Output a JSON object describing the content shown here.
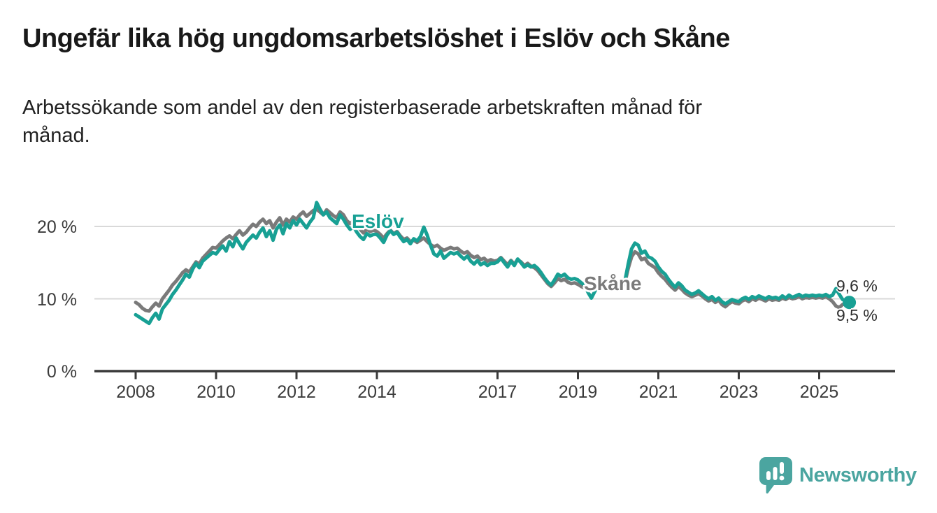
{
  "chart_data": {
    "type": "line",
    "title": "Ungefär lika hög ungdomsarbetslöshet i Eslöv och Skåne",
    "subtitle_lines": [
      "Arbetssökande som andel av den registerbaserade arbetskraften månad för",
      "månad."
    ],
    "x_start_year": 2008,
    "points_per_year": 12,
    "x_ticks": [
      2008,
      2010,
      2012,
      2014,
      2017,
      2019,
      2021,
      2023,
      2025
    ],
    "y_ticks": [
      {
        "value": 20,
        "label": "20 %"
      },
      {
        "value": 10,
        "label": "10 %"
      },
      {
        "value": 0,
        "label": "0 %"
      }
    ],
    "ylim": [
      0,
      25
    ],
    "grid": "horizontal-only",
    "legend": "inline-series-labels",
    "series": [
      {
        "name": "Skåne",
        "color": "#7A7A7A",
        "end_label": "9,6 %",
        "end_dot": false,
        "values": [
          9.5,
          9.2,
          8.7,
          8.4,
          8.3,
          8.9,
          9.4,
          9,
          10,
          10.6,
          11.2,
          11.9,
          12.4,
          13,
          13.6,
          14,
          13.7,
          14.4,
          15.1,
          14.8,
          15.6,
          16.1,
          16.6,
          17.1,
          17,
          17.5,
          18,
          18.4,
          18.7,
          18.3,
          18.9,
          19.4,
          18.8,
          19.2,
          19.8,
          20.3,
          20,
          20.6,
          21,
          20.4,
          20.8,
          19.8,
          20.6,
          21.2,
          20.2,
          21,
          20.6,
          21.3,
          21,
          21.6,
          22,
          21.4,
          21.8,
          22.2,
          22.4,
          22,
          21.6,
          22.3,
          21.9,
          21.5,
          21.2,
          22,
          21.6,
          20.8,
          20.4,
          20.8,
          20.2,
          19.6,
          19.1,
          19.6,
          19.3,
          19.5,
          19.3,
          18.9,
          18.4,
          19,
          19.5,
          19,
          19.3,
          18.7,
          18.2,
          18.4,
          17.9,
          18.1,
          17.8,
          18.1,
          18.4,
          17.9,
          17.5,
          17.2,
          17.4,
          17,
          16.7,
          16.9,
          17.1,
          16.9,
          17,
          16.6,
          16.3,
          16.5,
          16,
          15.7,
          15.9,
          15.4,
          15.6,
          15.2,
          15.4,
          15.2,
          15.3,
          15.7,
          15.2,
          14.7,
          15.3,
          14.8,
          15.4,
          15.1,
          14.6,
          14.9,
          14.5,
          14.3,
          13.9,
          13.3,
          12.7,
          12.1,
          11.7,
          12.2,
          12.8,
          12.5,
          12.7,
          12.3,
          12.1,
          12.2,
          12,
          11.7,
          11.5,
          11.4,
          11.6,
          11.8,
          12,
          11.7,
          11.5,
          11.6,
          11.4,
          11.6,
          11.8,
          11.5,
          12.2,
          14.2,
          15.8,
          16.5,
          16.2,
          15.4,
          15.6,
          14.9,
          14.6,
          14.3,
          13.6,
          13.1,
          12.7,
          12.1,
          11.6,
          11.2,
          11.7,
          11.3,
          10.8,
          10.5,
          10.3,
          10.5,
          10.7,
          10.4,
          10,
          9.7,
          9.9,
          9.5,
          9.8,
          9.2,
          8.9,
          9.3,
          9.6,
          9.4,
          9.3,
          9.7,
          9.9,
          9.6,
          10,
          9.8,
          10.1,
          9.9,
          9.7,
          10,
          9.8,
          9.9,
          9.8,
          10.1,
          9.9,
          10.2,
          10,
          10.1,
          10.3,
          10,
          10.2,
          10.1,
          10.2,
          10.1,
          10.2,
          10.1,
          10.3,
          10,
          9.6,
          9,
          8.8,
          9.2,
          9.4,
          9.6
        ]
      },
      {
        "name": "Eslöv",
        "color": "#18A094",
        "end_label": "9,5 %",
        "end_dot": true,
        "values": [
          7.8,
          7.5,
          7.2,
          6.9,
          6.6,
          7.4,
          8,
          7.2,
          8.6,
          9.2,
          9.8,
          10.6,
          11.2,
          11.9,
          12.6,
          13.4,
          13,
          14.1,
          14.9,
          14.3,
          15.2,
          15.6,
          16,
          16.4,
          16.2,
          16.8,
          17.3,
          16.6,
          17.9,
          17.2,
          18.4,
          17.6,
          16.9,
          17.8,
          18.3,
          18.8,
          18.4,
          19.2,
          19.8,
          18.6,
          19.4,
          18.1,
          19.6,
          20.2,
          19,
          20.4,
          19.8,
          20.8,
          20.2,
          21,
          20.4,
          19.8,
          20.6,
          21.2,
          23.3,
          22.4,
          21.6,
          22,
          21.2,
          20.8,
          20.4,
          21.6,
          21,
          20.2,
          19.6,
          20,
          19.2,
          18.6,
          18.2,
          19,
          18.7,
          18.9,
          18.9,
          18.4,
          17.8,
          18.8,
          19.4,
          18.9,
          19.2,
          18.5,
          17.9,
          18.2,
          17.6,
          18.3,
          18,
          18.6,
          19.9,
          18.8,
          17.4,
          16.2,
          15.9,
          16.6,
          15.6,
          16,
          16.4,
          16.2,
          16.4,
          15.9,
          15.5,
          15.9,
          15.2,
          14.8,
          15.3,
          14.7,
          15,
          14.6,
          14.9,
          14.9,
          15.1,
          15.6,
          15,
          14.4,
          15.2,
          14.6,
          15.5,
          15,
          14.4,
          14.7,
          14.4,
          14.6,
          14.2,
          13.6,
          12.9,
          12.3,
          11.9,
          12.6,
          13.4,
          13.1,
          13.4,
          12.9,
          12.7,
          12.8,
          12.6,
          12.2,
          11.9,
          10.9,
          10.1,
          11,
          11.8,
          11.4,
          11.6,
          11.3,
          11.5,
          11.7,
          11.9,
          11.6,
          12.4,
          14.8,
          16.9,
          17.7,
          17.4,
          16.3,
          16.6,
          15.8,
          15.6,
          15.2,
          14.4,
          13.8,
          13.4,
          12.7,
          12.1,
          11.6,
          12.2,
          11.8,
          11.2,
          10.9,
          10.6,
          10.8,
          11.1,
          10.7,
          10.3,
          10,
          10.3,
          9.8,
          10.1,
          9.6,
          9.3,
          9.6,
          9.9,
          9.7,
          9.6,
          10,
          10.2,
          9.9,
          10.3,
          10.1,
          10.4,
          10.2,
          10,
          10.3,
          10.1,
          10.2,
          10,
          10.4,
          10.1,
          10.5,
          10.2,
          10.4,
          10.6,
          10.3,
          10.5,
          10.4,
          10.5,
          10.4,
          10.5,
          10.4,
          10.6,
          10.3,
          10.5,
          11.4,
          10.6,
          9.9,
          9.7,
          9.5
        ]
      }
    ]
  },
  "colors": {
    "axis": "#3a3a3a",
    "grid": "#d9d9d9",
    "accent_teal": "#18A094",
    "comparison_gray": "#7A7A7A",
    "logo": "#4BA5A0"
  },
  "branding": {
    "logo_text": "Newsworthy",
    "logo_icon": "newsworthy-speech-bubble-bar-chart-icon"
  }
}
